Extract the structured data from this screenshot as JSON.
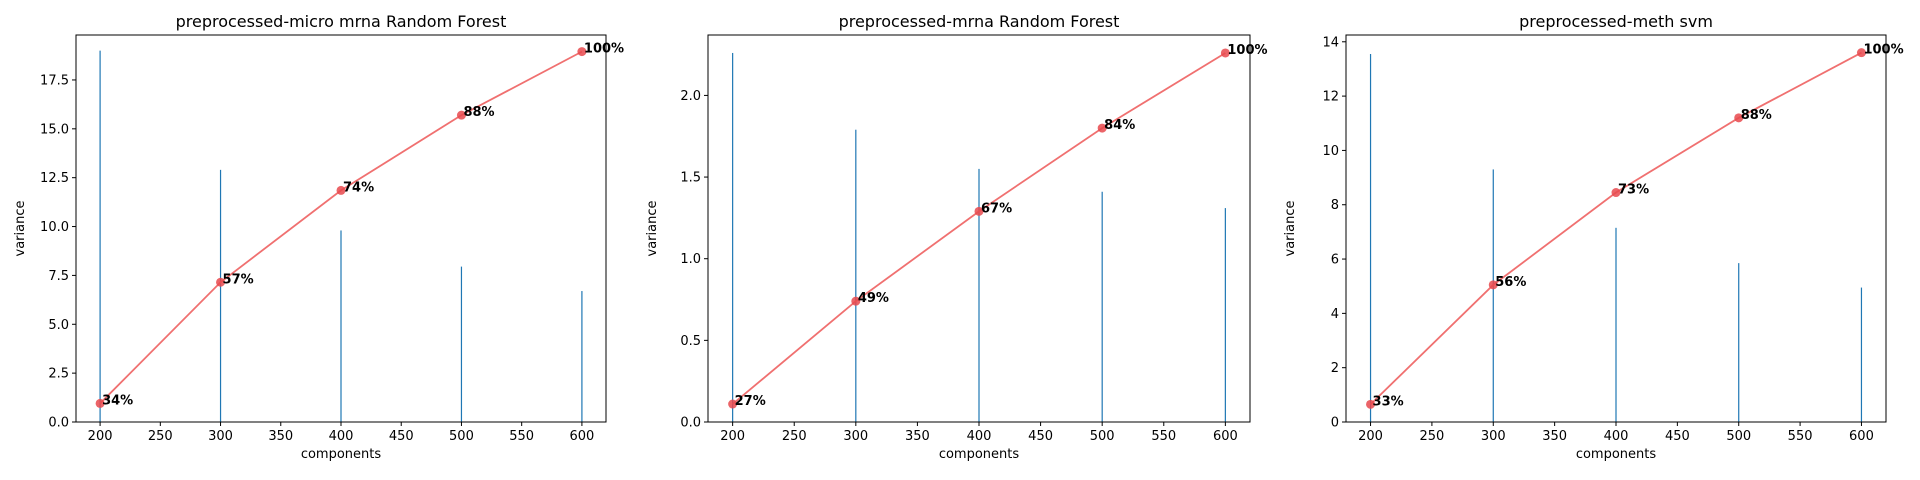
{
  "colors": {
    "bar": "#1f77b4",
    "line": "#f07070",
    "point": "#e8494e",
    "frame": "#000000"
  },
  "chart_data": [
    {
      "type": "bar+line",
      "title": "preprocessed-micro mrna  Random Forest",
      "xlabel": "components",
      "ylabel": "variance",
      "x": [
        200,
        300,
        400,
        500,
        600
      ],
      "bar_values": [
        19.0,
        12.9,
        9.8,
        7.95,
        6.7
      ],
      "line_values": [
        0.95,
        7.15,
        11.85,
        15.7,
        18.95
      ],
      "point_labels": [
        "34%",
        "57%",
        "74%",
        "88%",
        "100%"
      ],
      "xlim": [
        180,
        620
      ],
      "ylim": [
        0,
        19.8
      ],
      "xticks": [
        "200",
        "250",
        "300",
        "350",
        "400",
        "450",
        "500",
        "550",
        "600"
      ],
      "xtick_values": [
        200,
        250,
        300,
        350,
        400,
        450,
        500,
        550,
        600
      ],
      "yticks": [
        "0.0",
        "2.5",
        "5.0",
        "7.5",
        "10.0",
        "12.5",
        "15.0",
        "17.5"
      ],
      "ytick_values": [
        0,
        2.5,
        5,
        7.5,
        10,
        12.5,
        15,
        17.5
      ],
      "grid": false
    },
    {
      "type": "bar+line",
      "title": "preprocessed-mrna Random Forest",
      "xlabel": "components",
      "ylabel": "variance",
      "x": [
        200,
        300,
        400,
        500,
        600
      ],
      "bar_values": [
        2.26,
        1.79,
        1.55,
        1.41,
        1.31
      ],
      "line_values": [
        0.11,
        0.74,
        1.29,
        1.8,
        2.26
      ],
      "point_labels": [
        "27%",
        "49%",
        "67%",
        "84%",
        "100%"
      ],
      "xlim": [
        180,
        620
      ],
      "ylim": [
        0,
        2.37
      ],
      "xticks": [
        "200",
        "250",
        "300",
        "350",
        "400",
        "450",
        "500",
        "550",
        "600"
      ],
      "xtick_values": [
        200,
        250,
        300,
        350,
        400,
        450,
        500,
        550,
        600
      ],
      "yticks": [
        "0.0",
        "0.5",
        "1.0",
        "1.5",
        "2.0"
      ],
      "ytick_values": [
        0,
        0.5,
        1.0,
        1.5,
        2.0
      ],
      "grid": false
    },
    {
      "type": "bar+line",
      "title": "preprocessed-meth svm",
      "xlabel": "components",
      "ylabel": "variance",
      "x": [
        200,
        300,
        400,
        500,
        600
      ],
      "bar_values": [
        13.55,
        9.3,
        7.15,
        5.85,
        4.95
      ],
      "line_values": [
        0.65,
        5.05,
        8.45,
        11.2,
        13.6
      ],
      "point_labels": [
        "33%",
        "56%",
        "73%",
        "88%",
        "100%"
      ],
      "xlim": [
        180,
        620
      ],
      "ylim": [
        0,
        14.25
      ],
      "xticks": [
        "200",
        "250",
        "300",
        "350",
        "400",
        "450",
        "500",
        "550",
        "600"
      ],
      "xtick_values": [
        200,
        250,
        300,
        350,
        400,
        450,
        500,
        550,
        600
      ],
      "yticks": [
        "0",
        "2",
        "4",
        "6",
        "8",
        "10",
        "12",
        "14"
      ],
      "ytick_values": [
        0,
        2,
        4,
        6,
        8,
        10,
        12,
        14
      ],
      "grid": false
    }
  ]
}
